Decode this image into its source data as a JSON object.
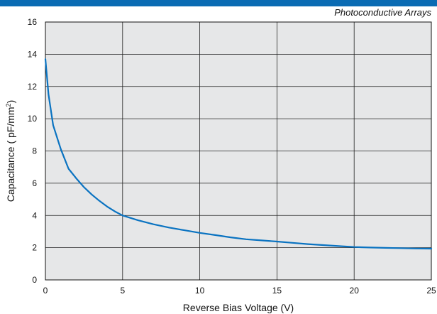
{
  "header": {
    "bar_color": "#0a6bb3",
    "subtitle": "Photoconductive Arrays"
  },
  "chart_data": {
    "type": "line",
    "xlabel": "Reverse Bias Voltage (V)",
    "ylabel_main": "Capacitance ( pF/mm",
    "ylabel_sup": "2",
    "ylabel_close": ")",
    "xlim": [
      0,
      25
    ],
    "ylim": [
      0,
      16
    ],
    "x_ticks": [
      0,
      5,
      10,
      15,
      20,
      25
    ],
    "y_ticks": [
      0,
      2,
      4,
      6,
      8,
      10,
      12,
      14,
      16
    ],
    "grid": true,
    "plot_background": "#e6e7e8",
    "series": [
      {
        "color": "#0a73c1",
        "x": [
          0,
          0.2,
          0.5,
          0.8,
          1.0,
          1.5,
          2,
          2.5,
          3,
          3.5,
          4,
          4.5,
          5,
          6,
          7,
          8,
          9,
          10,
          11,
          12,
          13,
          14,
          15,
          16,
          17,
          18,
          19,
          20,
          21,
          22,
          23,
          24,
          25
        ],
        "y": [
          13.7,
          11.5,
          9.6,
          8.7,
          8.1,
          6.9,
          6.3,
          5.75,
          5.3,
          4.9,
          4.55,
          4.25,
          4.0,
          3.7,
          3.45,
          3.25,
          3.08,
          2.92,
          2.78,
          2.64,
          2.52,
          2.45,
          2.38,
          2.3,
          2.22,
          2.16,
          2.1,
          2.04,
          2.01,
          1.99,
          1.97,
          1.95,
          1.94
        ]
      }
    ]
  }
}
